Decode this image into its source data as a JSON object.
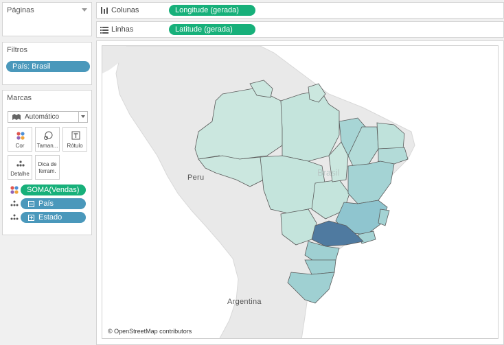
{
  "pages_card": {
    "title": "Páginas"
  },
  "filters_card": {
    "title": "Filtros",
    "filters": [
      "País: Brasil"
    ]
  },
  "marks_card": {
    "title": "Marcas",
    "mark_type": "Automático",
    "buttons": {
      "color": "Cor",
      "size": "Taman...",
      "label": "Rótulo",
      "detail": "Detalhe",
      "tooltip": "Dica de ferram."
    },
    "fields": [
      {
        "name": "SOMA(Vendas)",
        "role": "color"
      },
      {
        "name": "País",
        "role": "detail"
      },
      {
        "name": "Estado",
        "role": "detail"
      }
    ]
  },
  "columns_shelf": {
    "label": "Colunas",
    "pill": "Longitude (gerada)"
  },
  "rows_shelf": {
    "label": "Linhas",
    "pill": "Latitude (gerada)"
  },
  "map": {
    "labels": {
      "peru": "Peru",
      "argentina": "Argentina",
      "brasil": "Brasil"
    },
    "credit": "© OpenStreetMap contributors",
    "colors": {
      "low": "#c9e6de",
      "mid": "#9fd0d2",
      "high": "#4f7aa0",
      "land": "#e8e8e8",
      "border": "#555555"
    }
  }
}
